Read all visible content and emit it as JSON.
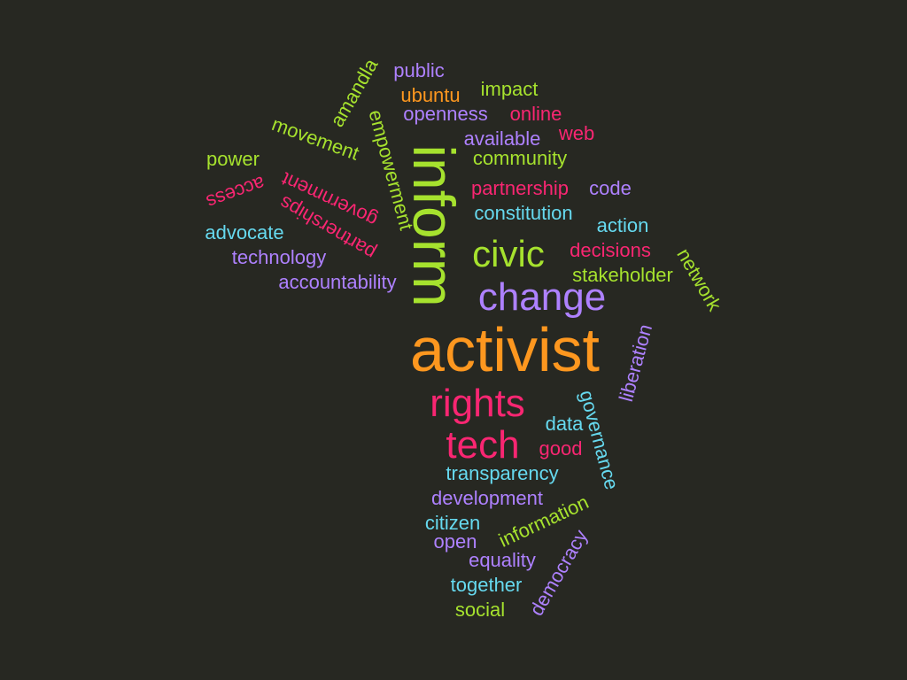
{
  "colors": {
    "background": "#272822",
    "orange": "#FD971F",
    "green": "#A6E22E",
    "pink": "#F92672",
    "purple": "#AE81FF",
    "cyan": "#66D9EF"
  },
  "words": [
    {
      "text": "activist",
      "color": "orange",
      "rotated": false
    },
    {
      "text": "inform",
      "color": "green",
      "rotated": true
    },
    {
      "text": "change",
      "color": "purple",
      "rotated": false
    },
    {
      "text": "civic",
      "color": "green",
      "rotated": false
    },
    {
      "text": "rights",
      "color": "pink",
      "rotated": false
    },
    {
      "text": "tech",
      "color": "pink",
      "rotated": false
    },
    {
      "text": "public",
      "color": "purple",
      "rotated": false
    },
    {
      "text": "ubuntu",
      "color": "orange",
      "rotated": false
    },
    {
      "text": "impact",
      "color": "green",
      "rotated": false
    },
    {
      "text": "openness",
      "color": "purple",
      "rotated": false
    },
    {
      "text": "online",
      "color": "pink",
      "rotated": false
    },
    {
      "text": "web",
      "color": "pink",
      "rotated": false
    },
    {
      "text": "available",
      "color": "purple",
      "rotated": false
    },
    {
      "text": "community",
      "color": "green",
      "rotated": false
    },
    {
      "text": "partnership",
      "color": "pink",
      "rotated": false
    },
    {
      "text": "code",
      "color": "purple",
      "rotated": false
    },
    {
      "text": "constitution",
      "color": "cyan",
      "rotated": false
    },
    {
      "text": "action",
      "color": "cyan",
      "rotated": false
    },
    {
      "text": "decisions",
      "color": "pink",
      "rotated": false
    },
    {
      "text": "stakeholder",
      "color": "green",
      "rotated": false
    },
    {
      "text": "network",
      "color": "green",
      "rotated": true
    },
    {
      "text": "liberation",
      "color": "purple",
      "rotated": true
    },
    {
      "text": "governance",
      "color": "cyan",
      "rotated": true
    },
    {
      "text": "data",
      "color": "cyan",
      "rotated": false
    },
    {
      "text": "good",
      "color": "pink",
      "rotated": false
    },
    {
      "text": "transparency",
      "color": "cyan",
      "rotated": false
    },
    {
      "text": "development",
      "color": "purple",
      "rotated": false
    },
    {
      "text": "information",
      "color": "green",
      "rotated": true
    },
    {
      "text": "citizen",
      "color": "cyan",
      "rotated": false
    },
    {
      "text": "open",
      "color": "purple",
      "rotated": false
    },
    {
      "text": "equality",
      "color": "purple",
      "rotated": false
    },
    {
      "text": "democracy",
      "color": "purple",
      "rotated": true
    },
    {
      "text": "together",
      "color": "cyan",
      "rotated": false
    },
    {
      "text": "social",
      "color": "green",
      "rotated": false
    },
    {
      "text": "amandla",
      "color": "green",
      "rotated": true
    },
    {
      "text": "empowerment",
      "color": "green",
      "rotated": true
    },
    {
      "text": "movement",
      "color": "green",
      "rotated": true
    },
    {
      "text": "power",
      "color": "green",
      "rotated": false
    },
    {
      "text": "government",
      "color": "pink",
      "rotated": true
    },
    {
      "text": "access",
      "color": "pink",
      "rotated": true
    },
    {
      "text": "partnerships",
      "color": "pink",
      "rotated": true
    },
    {
      "text": "advocate",
      "color": "cyan",
      "rotated": false
    },
    {
      "text": "technology",
      "color": "purple",
      "rotated": false
    },
    {
      "text": "accountability",
      "color": "purple",
      "rotated": false
    }
  ]
}
